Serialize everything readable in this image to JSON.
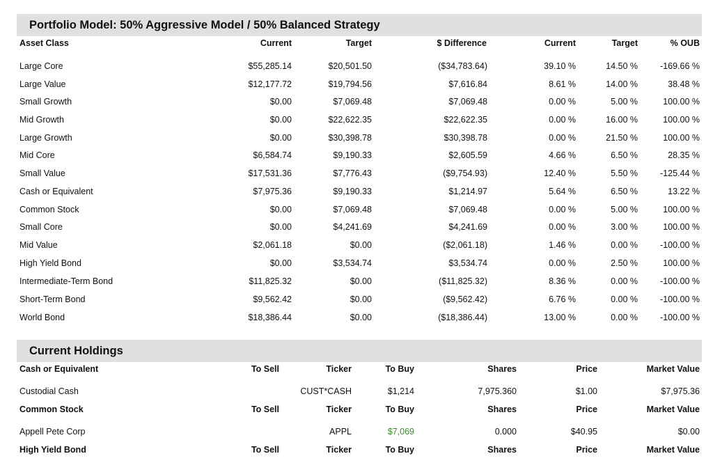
{
  "model_section": {
    "title": "Portfolio Model: 50% Aggressive Model / 50% Balanced Strategy",
    "columns": [
      "Asset Class",
      "Current",
      "Target",
      "$ Difference",
      "Current",
      "Target",
      "% OUB"
    ],
    "rows": [
      {
        "asset_class": "Large Core",
        "current": "$55,285.14",
        "target": "$20,501.50",
        "difference": "($34,783.64)",
        "current_pct": "39.10 %",
        "target_pct": "14.50 %",
        "oub": "-169.66 %"
      },
      {
        "asset_class": "Large Value",
        "current": "$12,177.72",
        "target": "$19,794.56",
        "difference": "$7,616.84",
        "current_pct": "8.61 %",
        "target_pct": "14.00 %",
        "oub": "38.48 %"
      },
      {
        "asset_class": "Small Growth",
        "current": "$0.00",
        "target": "$7,069.48",
        "difference": "$7,069.48",
        "current_pct": "0.00 %",
        "target_pct": "5.00 %",
        "oub": "100.00 %"
      },
      {
        "asset_class": "Mid Growth",
        "current": "$0.00",
        "target": "$22,622.35",
        "difference": "$22,622.35",
        "current_pct": "0.00 %",
        "target_pct": "16.00 %",
        "oub": "100.00 %"
      },
      {
        "asset_class": "Large Growth",
        "current": "$0.00",
        "target": "$30,398.78",
        "difference": "$30,398.78",
        "current_pct": "0.00 %",
        "target_pct": "21.50 %",
        "oub": "100.00 %"
      },
      {
        "asset_class": "Mid Core",
        "current": "$6,584.74",
        "target": "$9,190.33",
        "difference": "$2,605.59",
        "current_pct": "4.66 %",
        "target_pct": "6.50 %",
        "oub": "28.35 %"
      },
      {
        "asset_class": "Small Value",
        "current": "$17,531.36",
        "target": "$7,776.43",
        "difference": "($9,754.93)",
        "current_pct": "12.40 %",
        "target_pct": "5.50 %",
        "oub": "-125.44 %"
      },
      {
        "asset_class": "Cash or Equivalent",
        "current": "$7,975.36",
        "target": "$9,190.33",
        "difference": "$1,214.97",
        "current_pct": "5.64 %",
        "target_pct": "6.50 %",
        "oub": "13.22 %"
      },
      {
        "asset_class": "Common Stock",
        "current": "$0.00",
        "target": "$7,069.48",
        "difference": "$7,069.48",
        "current_pct": "0.00 %",
        "target_pct": "5.00 %",
        "oub": "100.00 %"
      },
      {
        "asset_class": "Small Core",
        "current": "$0.00",
        "target": "$4,241.69",
        "difference": "$4,241.69",
        "current_pct": "0.00 %",
        "target_pct": "3.00 %",
        "oub": "100.00 %"
      },
      {
        "asset_class": "Mid Value",
        "current": "$2,061.18",
        "target": "$0.00",
        "difference": "($2,061.18)",
        "current_pct": "1.46 %",
        "target_pct": "0.00 %",
        "oub": "-100.00 %"
      },
      {
        "asset_class": "High Yield Bond",
        "current": "$0.00",
        "target": "$3,534.74",
        "difference": "$3,534.74",
        "current_pct": "0.00 %",
        "target_pct": "2.50 %",
        "oub": "100.00 %"
      },
      {
        "asset_class": "Intermediate-Term Bond",
        "current": "$11,825.32",
        "target": "$0.00",
        "difference": "($11,825.32)",
        "current_pct": "8.36 %",
        "target_pct": "0.00 %",
        "oub": "-100.00 %"
      },
      {
        "asset_class": "Short-Term Bond",
        "current": "$9,562.42",
        "target": "$0.00",
        "difference": "($9,562.42)",
        "current_pct": "6.76 %",
        "target_pct": "0.00 %",
        "oub": "-100.00 %"
      },
      {
        "asset_class": "World Bond",
        "current": "$18,386.44",
        "target": "$0.00",
        "difference": "($18,386.44)",
        "current_pct": "13.00 %",
        "target_pct": "0.00 %",
        "oub": "-100.00 %"
      }
    ]
  },
  "holdings_section": {
    "title": "Current Holdings",
    "groups": [
      {
        "header": {
          "category": "Cash or Equivalent",
          "to_sell": "To Sell",
          "ticker": "Ticker",
          "to_buy": "To Buy",
          "shares": "Shares",
          "price": "Price",
          "market_value": "Market Value"
        },
        "rows": [
          {
            "name": "Custodial Cash",
            "to_sell": "",
            "ticker": "CUST*CASH",
            "to_buy": "$1,214",
            "shares": "7,975.360",
            "price": "$1.00",
            "market_value": "$7,975.36"
          }
        ]
      },
      {
        "header": {
          "category": "Common Stock",
          "to_sell": "To Sell",
          "ticker": "Ticker",
          "to_buy": "To Buy",
          "shares": "Shares",
          "price": "Price",
          "market_value": "Market Value"
        },
        "rows": [
          {
            "name": "Appell Pete Corp",
            "to_sell": "",
            "ticker": "APPL",
            "to_buy": "$7,069",
            "shares": "0.000",
            "price": "$40.95",
            "market_value": "$0.00"
          }
        ]
      },
      {
        "header": {
          "category": "High Yield Bond",
          "to_sell": "To Sell",
          "ticker": "Ticker",
          "to_buy": "To Buy",
          "shares": "Shares",
          "price": "Price",
          "market_value": "Market Value"
        },
        "rows": []
      }
    ]
  },
  "colors": {
    "section_bar": "#e0e0e0",
    "buy_highlight": "#3c8a2e",
    "text": "#111111"
  }
}
